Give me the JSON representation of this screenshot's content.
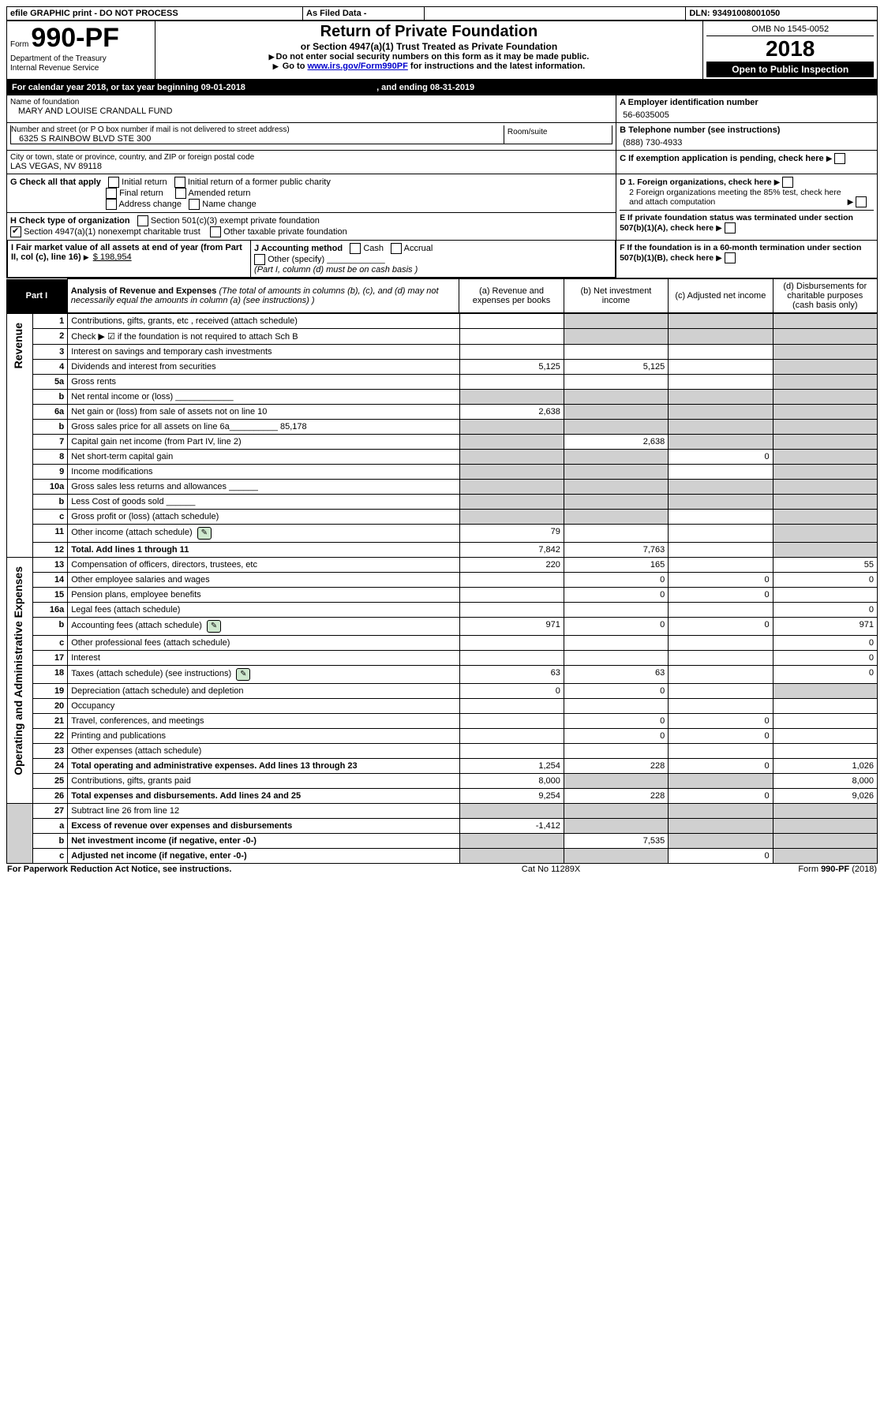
{
  "topbar": {
    "efile": "efile GRAPHIC print - DO NOT PROCESS",
    "asfiled": "As Filed Data -",
    "dln_label": "DLN:",
    "dln": "93491008001050"
  },
  "header": {
    "form_word": "Form",
    "form_no": "990-PF",
    "dept": "Department of the Treasury",
    "irs": "Internal Revenue Service",
    "title": "Return of Private Foundation",
    "subtitle": "or Section 4947(a)(1) Trust Treated as Private Foundation",
    "instr1": "Do not enter social security numbers on this form as it may be made public.",
    "instr2_a": "Go to ",
    "instr2_link": "www.irs.gov/Form990PF",
    "instr2_b": " for instructions and the latest information.",
    "omb": "OMB No 1545-0052",
    "year": "2018",
    "open": "Open to Public Inspection"
  },
  "cal": {
    "line_a": "For calendar year 2018, or tax year beginning ",
    "begin": "09-01-2018",
    "mid": " , and ending ",
    "end": "08-31-2019"
  },
  "info": {
    "name_lbl": "Name of foundation",
    "name": "MARY AND LOUISE CRANDALL FUND",
    "addr_lbl": "Number and street (or P O  box number if mail is not delivered to street address)",
    "addr": "6325 S RAINBOW BLVD STE 300",
    "room_lbl": "Room/suite",
    "city_lbl": "City or town, state or province, country, and ZIP or foreign postal code",
    "city": "LAS VEGAS, NV  89118",
    "a_lbl": "A Employer identification number",
    "a_val": "56-6035005",
    "b_lbl": "B Telephone number (see instructions)",
    "b_val": "(888) 730-4933",
    "c_lbl": "C If exemption application is pending, check here",
    "g_lbl": "G Check all that apply",
    "g_opts": [
      "Initial return",
      "Initial return of a former public charity",
      "Final return",
      "Amended return",
      "Address change",
      "Name change"
    ],
    "h_lbl": "H Check type of organization",
    "h_1": "Section 501(c)(3) exempt private foundation",
    "h_2": "Section 4947(a)(1) nonexempt charitable trust",
    "h_3": "Other taxable private foundation",
    "d1": "D 1. Foreign organizations, check here",
    "d2": "2 Foreign organizations meeting the 85% test, check here and attach computation",
    "e": "E  If private foundation status was terminated under section 507(b)(1)(A), check here",
    "i_lbl": "I Fair market value of all assets at end of year (from Part II, col  (c), line 16)",
    "i_val": "$  198,954",
    "j_lbl": "J Accounting method",
    "j_cash": "Cash",
    "j_accrual": "Accrual",
    "j_other": "Other (specify)",
    "j_note": "(Part I, column (d) must be on cash basis )",
    "f": "F  If the foundation is in a 60-month termination under section 507(b)(1)(B), check here"
  },
  "part1": {
    "label": "Part I",
    "title": "Analysis of Revenue and Expenses",
    "note": "(The total of amounts in columns (b), (c), and (d) may not necessarily equal the amounts in column (a) (see instructions) )",
    "col_a": "(a)   Revenue and expenses per books",
    "col_b": "(b)  Net investment income",
    "col_c": "(c)  Adjusted net income",
    "col_d": "(d)  Disbursements for charitable purposes (cash basis only)",
    "side_rev": "Revenue",
    "side_exp": "Operating and Administrative Expenses"
  },
  "rows": [
    {
      "n": "1",
      "d": "Contributions, gifts, grants, etc , received (attach schedule)",
      "a": "",
      "b": "",
      "c": "",
      "dd": "",
      "b_sh": true,
      "c_sh": true,
      "d_sh": true
    },
    {
      "n": "2",
      "d": "Check ▶ ☑ if the foundation is not required to attach Sch B",
      "a": "",
      "b": "",
      "c": "",
      "dd": "",
      "b_sh": true,
      "c_sh": true,
      "d_sh": true
    },
    {
      "n": "3",
      "d": "Interest on savings and temporary cash investments",
      "a": "",
      "b": "",
      "c": "",
      "dd": "",
      "d_sh": true
    },
    {
      "n": "4",
      "d": "Dividends and interest from securities",
      "a": "5,125",
      "b": "5,125",
      "c": "",
      "dd": "",
      "d_sh": true
    },
    {
      "n": "5a",
      "d": "Gross rents",
      "a": "",
      "b": "",
      "c": "",
      "dd": "",
      "d_sh": true
    },
    {
      "n": "b",
      "d": "Net rental income or (loss)   ____________",
      "a": "",
      "b": "",
      "c": "",
      "dd": "",
      "a_sh": true,
      "b_sh": true,
      "c_sh": true,
      "d_sh": true
    },
    {
      "n": "6a",
      "d": "Net gain or (loss) from sale of assets not on line 10",
      "a": "2,638",
      "b": "",
      "c": "",
      "dd": "",
      "b_sh": true,
      "c_sh": true,
      "d_sh": true
    },
    {
      "n": "b",
      "d": "Gross sales price for all assets on line 6a__________ 85,178",
      "a": "",
      "b": "",
      "c": "",
      "dd": "",
      "a_sh": true,
      "b_sh": true,
      "c_sh": true,
      "d_sh": true
    },
    {
      "n": "7",
      "d": "Capital gain net income (from Part IV, line 2)",
      "a": "",
      "b": "2,638",
      "c": "",
      "dd": "",
      "a_sh": true,
      "c_sh": true,
      "d_sh": true
    },
    {
      "n": "8",
      "d": "Net short-term capital gain",
      "a": "",
      "b": "",
      "c": "0",
      "dd": "",
      "a_sh": true,
      "b_sh": true,
      "d_sh": true
    },
    {
      "n": "9",
      "d": "Income modifications",
      "a": "",
      "b": "",
      "c": "",
      "dd": "",
      "a_sh": true,
      "b_sh": true,
      "d_sh": true
    },
    {
      "n": "10a",
      "d": "Gross sales less returns and allowances  ______",
      "a": "",
      "b": "",
      "c": "",
      "dd": "",
      "a_sh": true,
      "b_sh": true,
      "c_sh": true,
      "d_sh": true
    },
    {
      "n": "b",
      "d": "Less  Cost of goods sold     ______",
      "a": "",
      "b": "",
      "c": "",
      "dd": "",
      "a_sh": true,
      "b_sh": true,
      "c_sh": true,
      "d_sh": true
    },
    {
      "n": "c",
      "d": "Gross profit or (loss) (attach schedule)",
      "a": "",
      "b": "",
      "c": "",
      "dd": "",
      "a_sh": true,
      "b_sh": true,
      "d_sh": true
    },
    {
      "n": "11",
      "d": "Other income (attach schedule)",
      "a": "79",
      "b": "",
      "c": "",
      "dd": "",
      "d_sh": true,
      "att": true
    },
    {
      "n": "12",
      "d": "Total. Add lines 1 through 11",
      "a": "7,842",
      "b": "7,763",
      "c": "",
      "dd": "",
      "bold": true,
      "d_sh": true
    },
    {
      "n": "13",
      "d": "Compensation of officers, directors, trustees, etc",
      "a": "220",
      "b": "165",
      "c": "",
      "dd": "55"
    },
    {
      "n": "14",
      "d": "Other employee salaries and wages",
      "a": "",
      "b": "0",
      "c": "0",
      "dd": "0"
    },
    {
      "n": "15",
      "d": "Pension plans, employee benefits",
      "a": "",
      "b": "0",
      "c": "0",
      "dd": ""
    },
    {
      "n": "16a",
      "d": "Legal fees (attach schedule)",
      "a": "",
      "b": "",
      "c": "",
      "dd": "0"
    },
    {
      "n": "b",
      "d": "Accounting fees (attach schedule)",
      "a": "971",
      "b": "0",
      "c": "0",
      "dd": "971",
      "att": true
    },
    {
      "n": "c",
      "d": "Other professional fees (attach schedule)",
      "a": "",
      "b": "",
      "c": "",
      "dd": "0"
    },
    {
      "n": "17",
      "d": "Interest",
      "a": "",
      "b": "",
      "c": "",
      "dd": "0"
    },
    {
      "n": "18",
      "d": "Taxes (attach schedule) (see instructions)",
      "a": "63",
      "b": "63",
      "c": "",
      "dd": "0",
      "att": true
    },
    {
      "n": "19",
      "d": "Depreciation (attach schedule) and depletion",
      "a": "0",
      "b": "0",
      "c": "",
      "dd": "",
      "d_sh": true
    },
    {
      "n": "20",
      "d": "Occupancy",
      "a": "",
      "b": "",
      "c": "",
      "dd": ""
    },
    {
      "n": "21",
      "d": "Travel, conferences, and meetings",
      "a": "",
      "b": "0",
      "c": "0",
      "dd": ""
    },
    {
      "n": "22",
      "d": "Printing and publications",
      "a": "",
      "b": "0",
      "c": "0",
      "dd": ""
    },
    {
      "n": "23",
      "d": "Other expenses (attach schedule)",
      "a": "",
      "b": "",
      "c": "",
      "dd": ""
    },
    {
      "n": "24",
      "d": "Total operating and administrative expenses. Add lines 13 through 23",
      "a": "1,254",
      "b": "228",
      "c": "0",
      "dd": "1,026",
      "bold": true
    },
    {
      "n": "25",
      "d": "Contributions, gifts, grants paid",
      "a": "8,000",
      "b": "",
      "c": "",
      "dd": "8,000",
      "b_sh": true,
      "c_sh": true
    },
    {
      "n": "26",
      "d": "Total expenses and disbursements. Add lines 24 and 25",
      "a": "9,254",
      "b": "228",
      "c": "0",
      "dd": "9,026",
      "bold": true
    },
    {
      "n": "27",
      "d": "Subtract line 26 from line 12",
      "a": "",
      "b": "",
      "c": "",
      "dd": "",
      "a_sh": true,
      "b_sh": true,
      "c_sh": true,
      "d_sh": true
    },
    {
      "n": "a",
      "d": "Excess of revenue over expenses and disbursements",
      "a": "-1,412",
      "b": "",
      "c": "",
      "dd": "",
      "bold": true,
      "b_sh": true,
      "c_sh": true,
      "d_sh": true
    },
    {
      "n": "b",
      "d": "Net investment income (if negative, enter -0-)",
      "a": "",
      "b": "7,535",
      "c": "",
      "dd": "",
      "bold": true,
      "a_sh": true,
      "c_sh": true,
      "d_sh": true
    },
    {
      "n": "c",
      "d": "Adjusted net income (if negative, enter -0-)",
      "a": "",
      "b": "",
      "c": "0",
      "dd": "",
      "bold": true,
      "a_sh": true,
      "b_sh": true,
      "d_sh": true
    }
  ],
  "footer": {
    "left": "For Paperwork Reduction Act Notice, see instructions.",
    "mid": "Cat  No  11289X",
    "right": "Form 990-PF (2018)"
  }
}
